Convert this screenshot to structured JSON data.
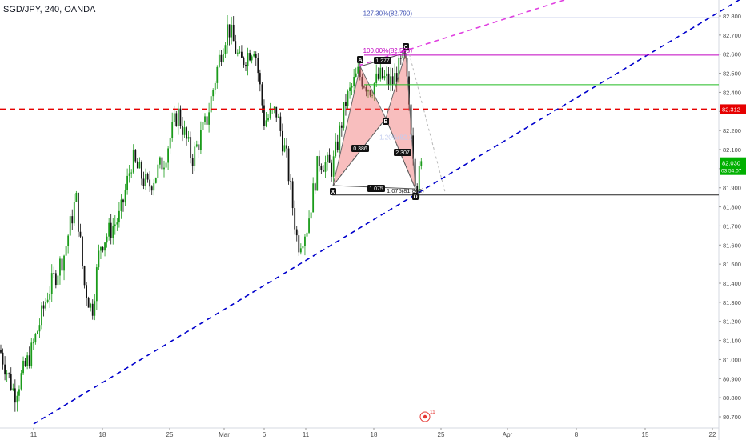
{
  "header": {
    "title": "SGD/JPY, 240, OANDA"
  },
  "chart_data": {
    "type": "candlestick",
    "symbol": "SGD/JPY",
    "interval": "240",
    "source": "OANDA",
    "x_ticks": [
      "11",
      "18",
      "25",
      "Mar",
      "6",
      "11",
      "18",
      "25",
      "Apr",
      "8",
      "15",
      "22"
    ],
    "y_ticks": [
      "82.800",
      "82.700",
      "82.600",
      "82.500",
      "82.400",
      "82.300",
      "82.200",
      "82.100",
      "82.000",
      "81.900",
      "81.800",
      "81.700",
      "81.600",
      "81.500",
      "81.400",
      "81.300",
      "81.200",
      "81.100",
      "81.000",
      "80.900",
      "80.800",
      "80.700"
    ],
    "ylim": [
      80.68,
      82.89
    ],
    "current_price": {
      "value": "82.030",
      "countdown": "03:54:07",
      "color": "#00b000"
    },
    "horizontal_line": {
      "value": "82.312",
      "color": "#e60000"
    },
    "fib_levels": [
      {
        "label": "127.30%(82.790)",
        "value": 82.79,
        "color": "#3f51b5"
      },
      {
        "label": "100.00%(82.595)",
        "value": 82.595,
        "color": "#c000c0"
      },
      {
        "label": "",
        "value": 82.44,
        "color": "#22bb22"
      },
      {
        "label": "1.20%(82.1",
        "value": 82.14,
        "color": "#c3ccef"
      },
      {
        "label": "1.075(81.862)",
        "value": 81.862,
        "color": "#222222"
      }
    ],
    "harmonic_pattern": {
      "points": [
        "X",
        "A",
        "B",
        "C",
        "D"
      ],
      "ratios": [
        "0.386",
        "1.277",
        "2.307",
        "1.075"
      ]
    },
    "trendlines": [
      {
        "name": "rising-support",
        "color": "#0000cc",
        "style": "dashed"
      },
      {
        "name": "pattern-extension",
        "color": "#e040e0",
        "style": "dashed"
      }
    ],
    "event_marker": {
      "label": "11",
      "color": "#e53935"
    }
  }
}
